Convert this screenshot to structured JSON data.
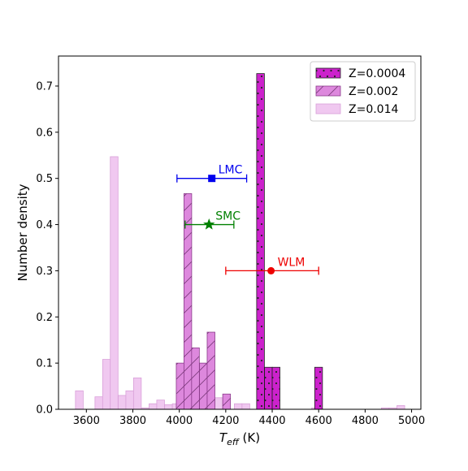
{
  "chart_data": {
    "type": "bar",
    "title": "",
    "xlabel_main": "T",
    "xlabel_sub": "eff",
    "xlabel_unit": " (K)",
    "ylabel": "Number density",
    "xlim": [
      3480,
      5040
    ],
    "ylim": [
      0,
      0.765
    ],
    "bin_width": 33.3,
    "xticks": [
      3600,
      3800,
      4000,
      4200,
      4400,
      4600,
      4800,
      5000
    ],
    "yticks": [
      0.0,
      0.1,
      0.2,
      0.3,
      0.4,
      0.5,
      0.6,
      0.7
    ],
    "ytick_labels": [
      "0.0",
      "0.1",
      "0.2",
      "0.3",
      "0.4",
      "0.5",
      "0.6",
      "0.7"
    ],
    "series": [
      {
        "name": "Z=0.014",
        "color": "#f0c8f0",
        "edge": "#d9a0d9",
        "hatch": "none",
        "bins": [
          {
            "x": 3553,
            "y": 0.04
          },
          {
            "x": 3637,
            "y": 0.027
          },
          {
            "x": 3670,
            "y": 0.108
          },
          {
            "x": 3703,
            "y": 0.547
          },
          {
            "x": 3737,
            "y": 0.03
          },
          {
            "x": 3770,
            "y": 0.04
          },
          {
            "x": 3803,
            "y": 0.068
          },
          {
            "x": 3837,
            "y": 0.003
          },
          {
            "x": 3870,
            "y": 0.012
          },
          {
            "x": 3903,
            "y": 0.02
          },
          {
            "x": 3937,
            "y": 0.01
          },
          {
            "x": 3970,
            "y": 0.012
          },
          {
            "x": 4153,
            "y": 0.025
          },
          {
            "x": 4237,
            "y": 0.012
          },
          {
            "x": 4270,
            "y": 0.012
          },
          {
            "x": 4570,
            "y": 0.003
          },
          {
            "x": 4870,
            "y": 0.003
          },
          {
            "x": 4903,
            "y": 0.003
          },
          {
            "x": 4937,
            "y": 0.008
          }
        ]
      },
      {
        "name": "Z=0.002",
        "color": "#dd88dd",
        "edge": "#8a3a8a",
        "hatch": "diag",
        "bins": [
          {
            "x": 3987,
            "y": 0.1
          },
          {
            "x": 4020,
            "y": 0.467
          },
          {
            "x": 4053,
            "y": 0.133
          },
          {
            "x": 4087,
            "y": 0.1
          },
          {
            "x": 4120,
            "y": 0.167
          },
          {
            "x": 4187,
            "y": 0.033
          }
        ]
      },
      {
        "name": "Z=0.0004",
        "color": "#cc22cc",
        "edge": "#222222",
        "hatch": "dots",
        "bins": [
          {
            "x": 4333,
            "y": 0.727
          },
          {
            "x": 4367,
            "y": 0.091
          },
          {
            "x": 4400,
            "y": 0.091
          },
          {
            "x": 4583,
            "y": 0.091
          }
        ]
      }
    ],
    "points": [
      {
        "label": "LMC",
        "x": 4140,
        "y": 0.5,
        "xerr_low": 3990,
        "xerr_high": 4290,
        "color": "#0000ee",
        "marker": "square",
        "label_dx": 8,
        "label_dy": -6
      },
      {
        "label": "SMC",
        "x": 4128,
        "y": 0.4,
        "xerr_low": 4025,
        "xerr_high": 4235,
        "color": "#008000",
        "marker": "star",
        "label_dx": 8,
        "label_dy": -6
      },
      {
        "label": "WLM",
        "x": 4395,
        "y": 0.3,
        "xerr_low": 4200,
        "xerr_high": 4600,
        "color": "#ee0000",
        "marker": "circle",
        "label_dx": 8,
        "label_dy": -6
      }
    ],
    "legend": {
      "position": "top-right",
      "entries": [
        "Z=0.0004",
        "Z=0.002",
        "Z=0.014"
      ]
    },
    "grid": false
  }
}
